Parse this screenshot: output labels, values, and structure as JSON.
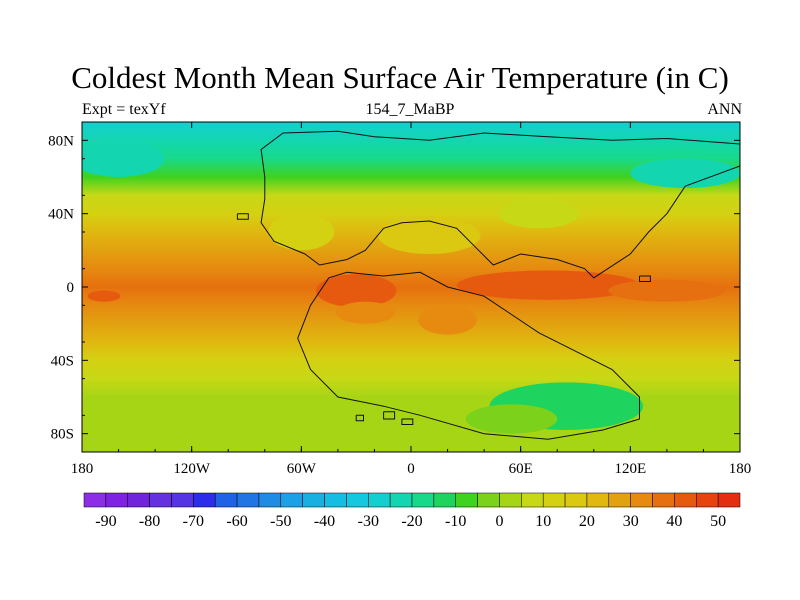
{
  "figure": {
    "title": "Coldest Month Mean Surface Air Temperature (in C)",
    "left_label": "Expt = texYf",
    "center_label": "154_7_MaBP",
    "right_label": "ANN"
  },
  "map": {
    "projection": "cylindrical-equidistant",
    "lon_range": [
      -180,
      180
    ],
    "lat_range": [
      -90,
      90
    ],
    "x_ticks": [
      {
        "value": -180,
        "label": "180"
      },
      {
        "value": -120,
        "label": "120W"
      },
      {
        "value": -60,
        "label": "60W"
      },
      {
        "value": 0,
        "label": "0"
      },
      {
        "value": 60,
        "label": "60E"
      },
      {
        "value": 120,
        "label": "120E"
      },
      {
        "value": 180,
        "label": "180"
      }
    ],
    "y_ticks": [
      {
        "value": 80,
        "label": "80N"
      },
      {
        "value": 40,
        "label": "40N"
      },
      {
        "value": 0,
        "label": "0"
      },
      {
        "value": -40,
        "label": "40S"
      },
      {
        "value": -80,
        "label": "80S"
      }
    ],
    "field": "coldest-month surface air temperature",
    "units": "C",
    "zonal_profile": [
      {
        "lat": 90,
        "value": -26
      },
      {
        "lat": 80,
        "value": -24
      },
      {
        "lat": 70,
        "value": -18
      },
      {
        "lat": 60,
        "value": -8
      },
      {
        "lat": 50,
        "value": 5
      },
      {
        "lat": 40,
        "value": 14
      },
      {
        "lat": 30,
        "value": 22
      },
      {
        "lat": 20,
        "value": 28
      },
      {
        "lat": 10,
        "value": 33
      },
      {
        "lat": 0,
        "value": 35
      },
      {
        "lat": -10,
        "value": 32
      },
      {
        "lat": -20,
        "value": 28
      },
      {
        "lat": -30,
        "value": 20
      },
      {
        "lat": -40,
        "value": 14
      },
      {
        "lat": -50,
        "value": 8
      },
      {
        "lat": -60,
        "value": 4
      },
      {
        "lat": -70,
        "value": 2
      },
      {
        "lat": -80,
        "value": 2
      },
      {
        "lat": -90,
        "value": 2
      }
    ],
    "anomalies": [
      {
        "lon": -30,
        "lat": -2,
        "value": 43,
        "rlon": 22,
        "rlat": 9
      },
      {
        "lon": 75,
        "lat": 1,
        "value": 41,
        "rlon": 50,
        "rlat": 8
      },
      {
        "lon": 140,
        "lat": -2,
        "value": 38,
        "rlon": 32,
        "rlat": 6
      },
      {
        "lon": -168,
        "lat": -5,
        "value": 42,
        "rlon": 9,
        "rlat": 3
      },
      {
        "lon": -25,
        "lat": -14,
        "value": 30,
        "rlon": 16,
        "rlat": 6
      },
      {
        "lon": 20,
        "lat": -18,
        "value": 31,
        "rlon": 16,
        "rlat": 8
      },
      {
        "lon": -60,
        "lat": 30,
        "value": 12,
        "rlon": 18,
        "rlat": 10
      },
      {
        "lon": 10,
        "lat": 28,
        "value": 16,
        "rlon": 28,
        "rlat": 10
      },
      {
        "lon": 70,
        "lat": 40,
        "value": 6,
        "rlon": 22,
        "rlat": 8
      },
      {
        "lon": 85,
        "lat": -65,
        "value": -12,
        "rlon": 42,
        "rlat": 13
      },
      {
        "lon": 55,
        "lat": -72,
        "value": -5,
        "rlon": 25,
        "rlat": 8
      },
      {
        "lon": -160,
        "lat": 70,
        "value": -22,
        "rlon": 25,
        "rlat": 10
      },
      {
        "lon": 150,
        "lat": 62,
        "value": -22,
        "rlon": 30,
        "rlat": 8
      }
    ],
    "colorbar": {
      "levels": [
        -95,
        -90,
        -85,
        -80,
        -75,
        -70,
        -65,
        -60,
        -55,
        -50,
        -45,
        -40,
        -35,
        -30,
        -25,
        -20,
        -15,
        -10,
        -5,
        0,
        5,
        10,
        15,
        20,
        25,
        30,
        35,
        40,
        45,
        50,
        55
      ],
      "tick_labels": [
        "-90",
        "-80",
        "-70",
        "-60",
        "-50",
        "-40",
        "-30",
        "-20",
        "-10",
        "0",
        "10",
        "20",
        "30",
        "40",
        "50"
      ],
      "colors": [
        "#8b2ee6",
        "#7f22e2",
        "#7025dd",
        "#6430e0",
        "#5535e3",
        "#2c2dea",
        "#1f62e6",
        "#1f75e4",
        "#1f8be4",
        "#1da1e6",
        "#17b0e0",
        "#15bde3",
        "#13c8df",
        "#14cfd0",
        "#13d6b0",
        "#18d98a",
        "#1ed45e",
        "#3fd21f",
        "#7cd21a",
        "#a6d516",
        "#c7d816",
        "#d4d112",
        "#dbc811",
        "#e0b810",
        "#e2a110",
        "#e68a10",
        "#e6700f",
        "#e65a10",
        "#e6430f",
        "#e52e10"
      ]
    },
    "continents": [
      {
        "name": "northern-landmass",
        "outline": [
          [
            -80,
            60
          ],
          [
            -82,
            75
          ],
          [
            -70,
            84
          ],
          [
            -40,
            85
          ],
          [
            -20,
            82
          ],
          [
            10,
            80
          ],
          [
            40,
            84
          ],
          [
            75,
            82
          ],
          [
            110,
            80
          ],
          [
            140,
            81
          ],
          [
            180,
            78
          ],
          [
            180,
            66
          ],
          [
            150,
            55
          ],
          [
            140,
            40
          ],
          [
            130,
            30
          ],
          [
            120,
            18
          ],
          [
            100,
            5
          ],
          [
            95,
            10
          ],
          [
            80,
            15
          ],
          [
            60,
            18
          ],
          [
            45,
            12
          ],
          [
            35,
            22
          ],
          [
            25,
            32
          ],
          [
            10,
            36
          ],
          [
            -5,
            35
          ],
          [
            -15,
            32
          ],
          [
            -25,
            20
          ],
          [
            -35,
            15
          ],
          [
            -50,
            12
          ],
          [
            -58,
            18
          ],
          [
            -75,
            25
          ],
          [
            -82,
            35
          ],
          [
            -80,
            48
          ],
          [
            -80,
            60
          ]
        ]
      },
      {
        "name": "southern-landmass",
        "outline": [
          [
            -45,
            5
          ],
          [
            -35,
            8
          ],
          [
            -15,
            6
          ],
          [
            5,
            8
          ],
          [
            20,
            0
          ],
          [
            40,
            -5
          ],
          [
            55,
            -15
          ],
          [
            70,
            -25
          ],
          [
            90,
            -35
          ],
          [
            110,
            -45
          ],
          [
            125,
            -60
          ],
          [
            125,
            -72
          ],
          [
            105,
            -78
          ],
          [
            75,
            -83
          ],
          [
            40,
            -80
          ],
          [
            5,
            -70
          ],
          [
            -15,
            -65
          ],
          [
            -40,
            -60
          ],
          [
            -55,
            -45
          ],
          [
            -62,
            -28
          ],
          [
            -55,
            -10
          ],
          [
            -45,
            5
          ]
        ]
      },
      {
        "name": "island-1",
        "outline": [
          [
            -95,
            40
          ],
          [
            -89,
            40
          ],
          [
            -89,
            37
          ],
          [
            -95,
            37
          ],
          [
            -95,
            40
          ]
        ]
      },
      {
        "name": "island-2",
        "outline": [
          [
            -15,
            -68
          ],
          [
            -9,
            -68
          ],
          [
            -9,
            -72
          ],
          [
            -15,
            -72
          ],
          [
            -15,
            -68
          ]
        ]
      },
      {
        "name": "island-3",
        "outline": [
          [
            -30,
            -70
          ],
          [
            -26,
            -70
          ],
          [
            -26,
            -73
          ],
          [
            -30,
            -73
          ],
          [
            -30,
            -70
          ]
        ]
      },
      {
        "name": "island-4",
        "outline": [
          [
            125,
            6
          ],
          [
            131,
            6
          ],
          [
            131,
            3
          ],
          [
            125,
            3
          ],
          [
            125,
            6
          ]
        ]
      },
      {
        "name": "island-5",
        "outline": [
          [
            -5,
            -72
          ],
          [
            1,
            -72
          ],
          [
            1,
            -75
          ],
          [
            -5,
            -75
          ],
          [
            -5,
            -72
          ]
        ]
      }
    ]
  }
}
